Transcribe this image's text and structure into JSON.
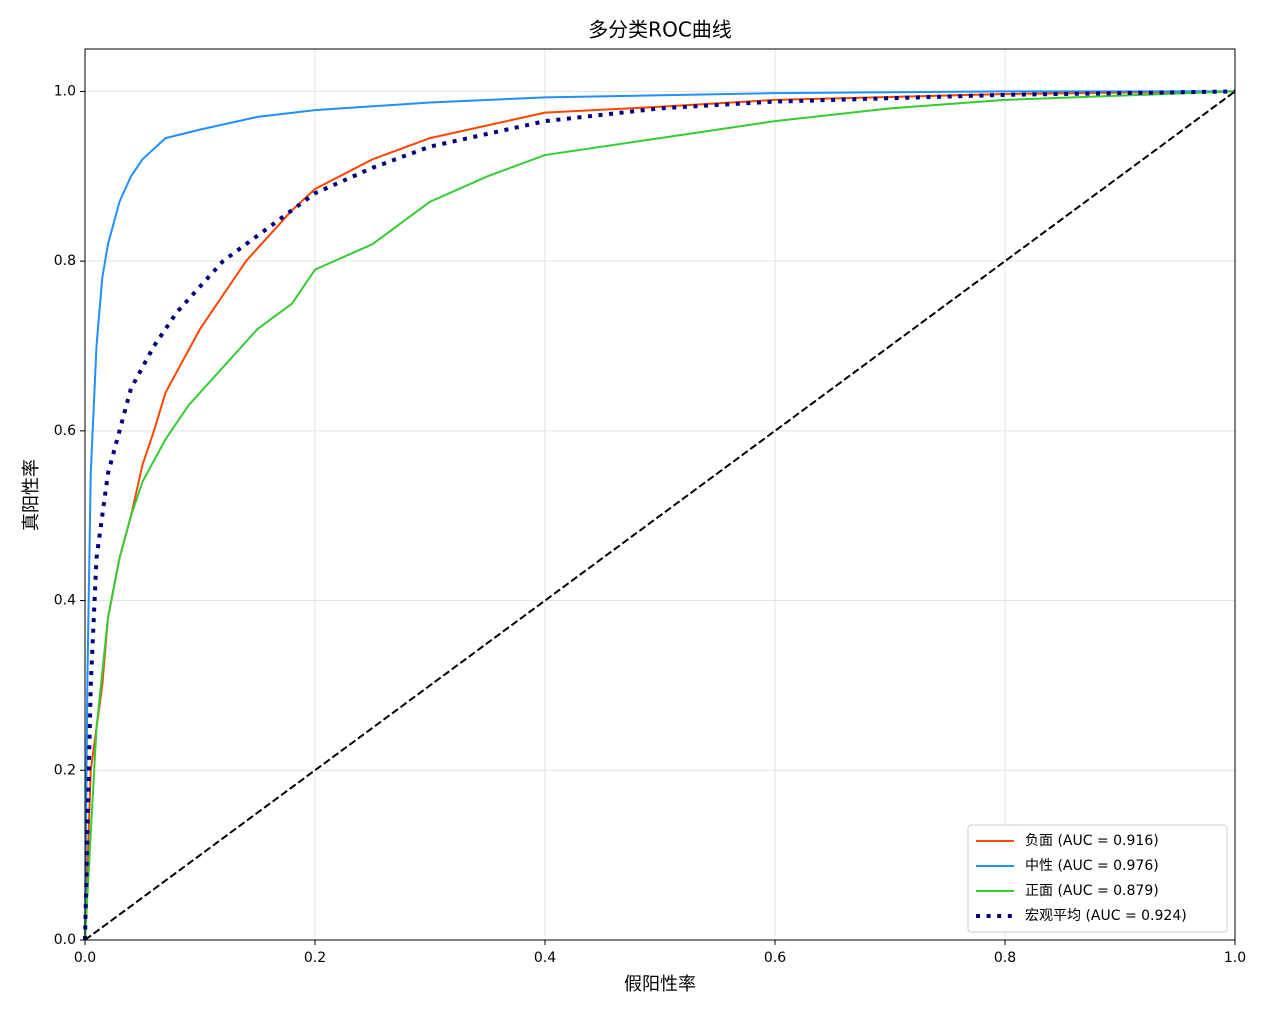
{
  "chart_data": {
    "type": "line",
    "title": "多分类ROC曲线",
    "x_label": "假阳性率",
    "y_label": "真阳性率",
    "xlim": [
      0,
      1
    ],
    "ylim": [
      0,
      1.05
    ],
    "xticks": [
      {
        "value": 0,
        "label": "0.0"
      },
      0.2,
      0.4,
      0.6,
      0.8,
      {
        "value": 1,
        "label": "1.0"
      }
    ],
    "yticks": [
      {
        "value": 0,
        "label": "0.0"
      },
      0.2,
      0.4,
      0.6,
      0.8,
      {
        "value": 1,
        "label": "1.0"
      }
    ],
    "grid": true,
    "legend": "lower right",
    "series": [
      {
        "name": "负面 (AUC = 0.916)",
        "color": "#ff4500",
        "linestyle": "solid",
        "x": [
          0,
          0.005,
          0.015,
          0.02,
          0.03,
          0.04,
          0.05,
          0.06,
          0.07,
          0.08,
          0.1,
          0.12,
          0.14,
          0.16,
          0.18,
          0.2,
          0.25,
          0.3,
          0.35,
          0.4,
          0.5,
          0.6,
          0.8,
          1
        ],
        "values": [
          0,
          0.2,
          0.3,
          0.38,
          0.45,
          0.5,
          0.56,
          0.6,
          0.645,
          0.67,
          0.72,
          0.76,
          0.8,
          0.83,
          0.86,
          0.885,
          0.92,
          0.945,
          0.96,
          0.975,
          0.982,
          0.99,
          0.997,
          1
        ]
      },
      {
        "name": "中性 (AUC = 0.976)",
        "color": "#1e90ff",
        "linestyle": "solid",
        "x": [
          0,
          0.002,
          0.005,
          0.01,
          0.015,
          0.02,
          0.03,
          0.04,
          0.05,
          0.07,
          0.1,
          0.15,
          0.2,
          0.3,
          0.4,
          0.6,
          0.8,
          1
        ],
        "values": [
          0,
          0.3,
          0.55,
          0.7,
          0.78,
          0.82,
          0.87,
          0.9,
          0.92,
          0.945,
          0.955,
          0.97,
          0.978,
          0.987,
          0.993,
          0.998,
          1,
          1
        ]
      },
      {
        "name": "正面 (AUC = 0.879)",
        "color": "#32cd32",
        "linestyle": "solid",
        "x": [
          0,
          0.01,
          0.02,
          0.03,
          0.04,
          0.05,
          0.07,
          0.09,
          0.11,
          0.13,
          0.15,
          0.18,
          0.2,
          0.25,
          0.3,
          0.35,
          0.4,
          0.5,
          0.6,
          0.7,
          0.8,
          0.9,
          1
        ],
        "values": [
          0,
          0.25,
          0.38,
          0.45,
          0.5,
          0.54,
          0.59,
          0.63,
          0.66,
          0.69,
          0.72,
          0.75,
          0.79,
          0.82,
          0.87,
          0.9,
          0.925,
          0.945,
          0.965,
          0.98,
          0.99,
          0.995,
          1
        ]
      },
      {
        "name": "宏观平均 (AUC = 0.924)",
        "color": "#000080",
        "linestyle": "dotted",
        "x": [
          0,
          0.005,
          0.01,
          0.02,
          0.03,
          0.04,
          0.06,
          0.08,
          0.1,
          0.12,
          0.15,
          0.2,
          0.25,
          0.3,
          0.35,
          0.4,
          0.5,
          0.6,
          0.8,
          1
        ],
        "values": [
          0,
          0.3,
          0.45,
          0.55,
          0.6,
          0.65,
          0.7,
          0.74,
          0.77,
          0.8,
          0.83,
          0.88,
          0.91,
          0.935,
          0.95,
          0.965,
          0.98,
          0.988,
          0.996,
          1
        ]
      }
    ],
    "reference_line": {
      "color": "#000000",
      "linestyle": "dashed",
      "x": [
        0,
        1
      ],
      "values": [
        0,
        1
      ]
    }
  }
}
